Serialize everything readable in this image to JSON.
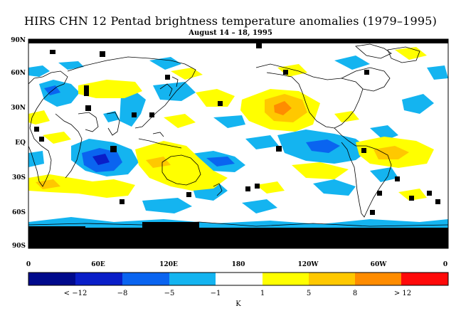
{
  "title": "HIRS CHN 12 Pentad brightness temperature anomalies (1979–1995)",
  "subtitle": "August 14 – 18, 1995",
  "map": {
    "lat_ticks": [
      "90N",
      "60N",
      "30N",
      "EQ",
      "30S",
      "60S",
      "90S"
    ],
    "lon_ticks": [
      "0",
      "60E",
      "120E",
      "180",
      "120W",
      "60W",
      "0"
    ],
    "missing_data_color": "#000000"
  },
  "colorbar": {
    "unit": "K",
    "boundary_labels": [
      "< −12",
      "−8",
      "−5",
      "−1",
      "1",
      "5",
      "8",
      "> 12"
    ],
    "colors": [
      "#000a8c",
      "#0a1ec8",
      "#0a64f0",
      "#14b4f0",
      "#ffffff",
      "#ffff00",
      "#ffc800",
      "#ff8c00",
      "#ff0a0a"
    ]
  }
}
